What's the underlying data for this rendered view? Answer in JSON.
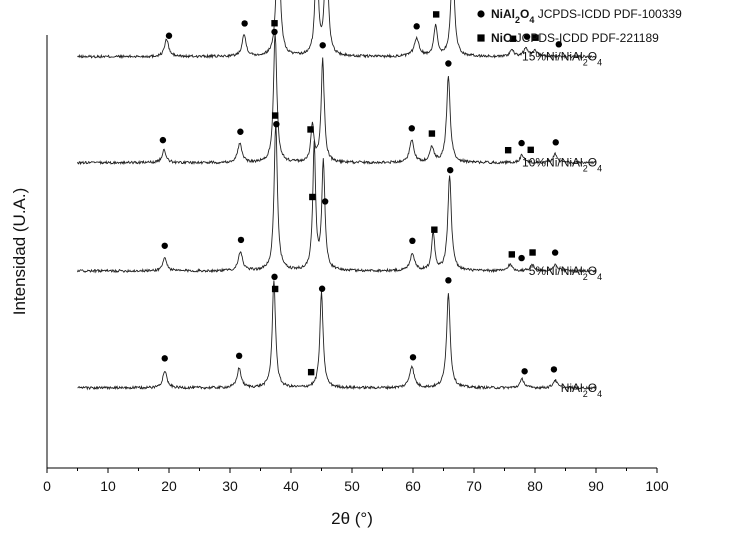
{
  "chart_data": {
    "type": "line",
    "xlabel": "2θ (°)",
    "ylabel": "Intensidad (U.A.)",
    "xlim": [
      0,
      100
    ],
    "xticks": [
      0,
      10,
      20,
      30,
      40,
      50,
      60,
      70,
      80,
      90,
      100
    ],
    "grid": false,
    "legend_position": "top-right",
    "legend": [
      {
        "marker": "circle",
        "formula": "NiAl₂O₄",
        "ref": "JCPDS-ICDD PDF-100339"
      },
      {
        "marker": "square",
        "formula": "NiO",
        "ref": "JCPDS-ICDD PDF-221189"
      }
    ],
    "series": [
      {
        "label": "15%Ni/NiAl₂O₄",
        "baseline": 0.05,
        "peaks": [
          [
            19.6,
            0.04,
            0.4
          ],
          [
            32.3,
            0.05,
            0.4
          ],
          [
            37.9,
            0.36,
            0.32
          ],
          [
            44.2,
            0.25,
            0.3
          ],
          [
            45.8,
            0.28,
            0.32
          ],
          [
            60.6,
            0.04,
            0.5
          ],
          [
            63.7,
            0.07,
            0.35
          ],
          [
            66.5,
            0.22,
            0.35
          ],
          [
            76.2,
            0.015,
            0.4
          ],
          [
            78.5,
            0.02,
            0.4
          ],
          [
            80.0,
            0.015,
            0.4
          ]
        ],
        "markers": [
          {
            "shape": "circle",
            "x": [
              20.0,
              32.4,
              37.9,
              46.0,
              60.6,
              66.5,
              78.7,
              83.9
            ]
          },
          {
            "shape": "square",
            "x": [
              37.9,
              44.0,
              63.8,
              76.4,
              80.1
            ]
          }
        ]
      },
      {
        "label": "10%Ni/NiAl₂O₄",
        "baseline": 0.295,
        "peaks": [
          [
            19.2,
            0.03,
            0.4
          ],
          [
            31.6,
            0.045,
            0.4
          ],
          [
            37.4,
            0.3,
            0.32
          ],
          [
            43.5,
            0.085,
            0.3
          ],
          [
            45.2,
            0.24,
            0.3
          ],
          [
            59.8,
            0.05,
            0.45
          ],
          [
            63.1,
            0.035,
            0.4
          ],
          [
            65.8,
            0.2,
            0.35
          ],
          [
            77.9,
            0.018,
            0.4
          ],
          [
            83.3,
            0.02,
            0.4
          ]
        ],
        "markers": [
          {
            "shape": "circle",
            "x": [
              19.0,
              31.7,
              37.3,
              45.2,
              59.8,
              65.8,
              77.8,
              83.4
            ]
          },
          {
            "shape": "square",
            "x": [
              37.3,
              43.2,
              63.1,
              75.6,
              79.3
            ]
          }
        ]
      },
      {
        "label": "5%Ni/NiAl₂O₄",
        "baseline": 0.545,
        "peaks": [
          [
            19.3,
            0.03,
            0.4
          ],
          [
            31.7,
            0.045,
            0.4
          ],
          [
            37.5,
            0.34,
            0.32
          ],
          [
            43.8,
            0.29,
            0.28
          ],
          [
            45.3,
            0.25,
            0.3
          ],
          [
            59.9,
            0.04,
            0.45
          ],
          [
            63.3,
            0.09,
            0.3
          ],
          [
            66.0,
            0.22,
            0.35
          ],
          [
            75.9,
            0.015,
            0.4
          ],
          [
            79.5,
            0.015,
            0.4
          ],
          [
            83.4,
            0.015,
            0.4
          ]
        ],
        "markers": [
          {
            "shape": "circle",
            "x": [
              19.3,
              31.8,
              37.6,
              45.6,
              59.9,
              66.1,
              77.8,
              83.3
            ]
          },
          {
            "shape": "square",
            "x": [
              37.4,
              43.5,
              63.5,
              76.2,
              79.6
            ]
          }
        ]
      },
      {
        "label": "NiAl₂O₄",
        "baseline": 0.815,
        "peaks": [
          [
            19.3,
            0.04,
            0.4
          ],
          [
            31.5,
            0.045,
            0.4
          ],
          [
            37.2,
            0.25,
            0.32
          ],
          [
            45.0,
            0.22,
            0.32
          ],
          [
            59.8,
            0.05,
            0.45
          ],
          [
            65.8,
            0.22,
            0.35
          ],
          [
            77.9,
            0.02,
            0.4
          ],
          [
            83.3,
            0.018,
            0.4
          ]
        ],
        "markers": [
          {
            "shape": "circle",
            "x": [
              19.3,
              31.5,
              37.3,
              45.1,
              60.0,
              65.8,
              78.3,
              83.1
            ]
          },
          {
            "shape": "square",
            "x": [
              37.4,
              43.3
            ]
          }
        ]
      }
    ]
  }
}
